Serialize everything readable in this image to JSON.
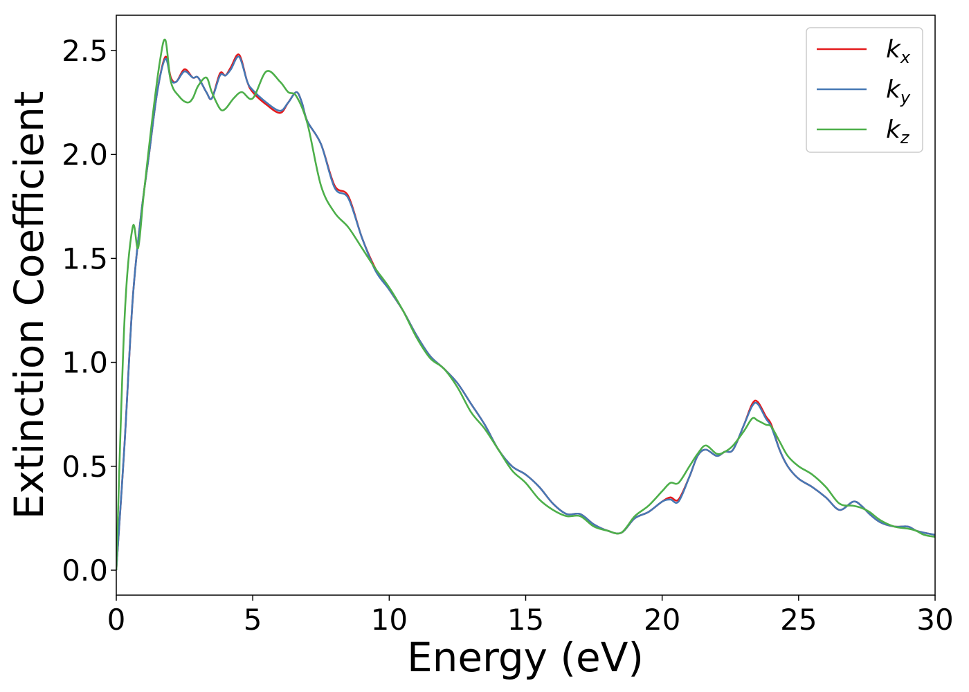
{
  "chart_data": {
    "type": "line",
    "title": "",
    "xlabel": "Energy (eV)",
    "ylabel": "Extinction Coefficient",
    "xlim": [
      0,
      30
    ],
    "ylim": [
      -0.12,
      2.67
    ],
    "xticks": [
      0,
      5,
      10,
      15,
      20,
      25,
      30
    ],
    "xtick_labels": [
      "0",
      "5",
      "10",
      "15",
      "20",
      "25",
      "30"
    ],
    "yticks": [
      0.0,
      0.5,
      1.0,
      1.5,
      2.0,
      2.5
    ],
    "ytick_labels": [
      "0.0",
      "0.5",
      "1.0",
      "1.5",
      "2.0",
      "2.5"
    ],
    "grid": false,
    "legend_position": "top-right",
    "series": [
      {
        "name": "kx",
        "label_main": "k",
        "label_sub": "x",
        "color": "#e41a1c",
        "x": [
          0,
          0.3,
          0.6,
          0.9,
          1.2,
          1.5,
          1.8,
          2.0,
          2.2,
          2.5,
          2.8,
          3.0,
          3.3,
          3.5,
          3.8,
          4.0,
          4.2,
          4.5,
          4.8,
          5.0,
          5.5,
          6.0,
          6.3,
          6.6,
          6.8,
          7.0,
          7.5,
          8.0,
          8.5,
          9.0,
          9.5,
          10.0,
          10.5,
          11.0,
          11.5,
          12.0,
          12.5,
          13.0,
          13.5,
          14.0,
          14.5,
          15.0,
          15.5,
          16.0,
          16.5,
          17.0,
          17.5,
          18.0,
          18.5,
          19.0,
          19.5,
          20.0,
          20.3,
          20.6,
          21.0,
          21.3,
          21.6,
          22.0,
          22.3,
          22.6,
          23.0,
          23.3,
          23.5,
          23.8,
          24.0,
          24.3,
          24.6,
          25.0,
          25.5,
          26.0,
          26.5,
          27.0,
          27.3,
          27.6,
          28.0,
          28.5,
          29.0,
          29.3,
          29.6,
          30.0
        ],
        "y": [
          0.0,
          0.6,
          1.3,
          1.7,
          2.0,
          2.3,
          2.47,
          2.37,
          2.35,
          2.41,
          2.37,
          2.37,
          2.3,
          2.27,
          2.39,
          2.38,
          2.42,
          2.48,
          2.35,
          2.3,
          2.24,
          2.2,
          2.25,
          2.3,
          2.25,
          2.16,
          2.05,
          1.85,
          1.8,
          1.6,
          1.45,
          1.35,
          1.25,
          1.13,
          1.03,
          0.97,
          0.9,
          0.8,
          0.7,
          0.58,
          0.5,
          0.46,
          0.4,
          0.32,
          0.27,
          0.27,
          0.22,
          0.19,
          0.18,
          0.25,
          0.28,
          0.33,
          0.35,
          0.34,
          0.45,
          0.55,
          0.58,
          0.55,
          0.57,
          0.58,
          0.7,
          0.8,
          0.81,
          0.74,
          0.7,
          0.58,
          0.5,
          0.44,
          0.4,
          0.35,
          0.29,
          0.33,
          0.31,
          0.27,
          0.23,
          0.21,
          0.21,
          0.19,
          0.18,
          0.17
        ]
      },
      {
        "name": "ky",
        "label_main": "k",
        "label_sub": "y",
        "color": "#4678b4",
        "x": [
          0,
          0.3,
          0.6,
          0.9,
          1.2,
          1.5,
          1.8,
          2.0,
          2.2,
          2.5,
          2.8,
          3.0,
          3.3,
          3.5,
          3.8,
          4.0,
          4.2,
          4.5,
          4.8,
          5.0,
          5.5,
          6.0,
          6.3,
          6.6,
          6.8,
          7.0,
          7.5,
          8.0,
          8.5,
          9.0,
          9.5,
          10.0,
          10.5,
          11.0,
          11.5,
          12.0,
          12.5,
          13.0,
          13.5,
          14.0,
          14.5,
          15.0,
          15.5,
          16.0,
          16.5,
          17.0,
          17.5,
          18.0,
          18.5,
          19.0,
          19.5,
          20.0,
          20.3,
          20.6,
          21.0,
          21.3,
          21.6,
          22.0,
          22.3,
          22.6,
          23.0,
          23.3,
          23.5,
          23.8,
          24.0,
          24.3,
          24.6,
          25.0,
          25.5,
          26.0,
          26.5,
          27.0,
          27.3,
          27.6,
          28.0,
          28.5,
          29.0,
          29.3,
          29.6,
          30.0
        ],
        "y": [
          0.0,
          0.6,
          1.3,
          1.7,
          2.0,
          2.3,
          2.46,
          2.36,
          2.35,
          2.4,
          2.37,
          2.37,
          2.3,
          2.27,
          2.38,
          2.38,
          2.41,
          2.47,
          2.35,
          2.31,
          2.25,
          2.21,
          2.25,
          2.3,
          2.25,
          2.16,
          2.05,
          1.84,
          1.79,
          1.6,
          1.44,
          1.35,
          1.25,
          1.13,
          1.03,
          0.97,
          0.9,
          0.8,
          0.7,
          0.58,
          0.5,
          0.46,
          0.4,
          0.32,
          0.27,
          0.27,
          0.22,
          0.19,
          0.18,
          0.25,
          0.28,
          0.33,
          0.34,
          0.33,
          0.45,
          0.55,
          0.58,
          0.55,
          0.57,
          0.58,
          0.7,
          0.79,
          0.8,
          0.73,
          0.69,
          0.58,
          0.5,
          0.44,
          0.4,
          0.35,
          0.29,
          0.33,
          0.31,
          0.27,
          0.23,
          0.21,
          0.21,
          0.19,
          0.18,
          0.17
        ]
      },
      {
        "name": "kz",
        "label_main": "k",
        "label_sub": "z",
        "color": "#4daf4a",
        "x": [
          0,
          0.3,
          0.6,
          0.8,
          1.0,
          1.3,
          1.6,
          1.8,
          2.0,
          2.3,
          2.6,
          2.8,
          3.0,
          3.3,
          3.5,
          3.8,
          4.0,
          4.3,
          4.6,
          5.0,
          5.5,
          6.0,
          6.3,
          6.6,
          7.0,
          7.5,
          8.0,
          8.5,
          9.0,
          9.5,
          10.0,
          10.5,
          11.0,
          11.5,
          12.0,
          12.5,
          13.0,
          13.5,
          14.0,
          14.5,
          15.0,
          15.5,
          16.0,
          16.5,
          17.0,
          17.5,
          18.0,
          18.5,
          19.0,
          19.5,
          20.0,
          20.3,
          20.6,
          21.0,
          21.3,
          21.6,
          22.0,
          22.3,
          22.6,
          23.0,
          23.3,
          23.5,
          23.8,
          24.0,
          24.3,
          24.6,
          25.0,
          25.5,
          26.0,
          26.5,
          27.0,
          27.3,
          27.6,
          28.0,
          28.5,
          29.0,
          29.3,
          29.6,
          30.0
        ],
        "y": [
          0.0,
          1.2,
          1.65,
          1.55,
          1.8,
          2.15,
          2.45,
          2.55,
          2.35,
          2.28,
          2.25,
          2.27,
          2.33,
          2.37,
          2.3,
          2.22,
          2.22,
          2.27,
          2.3,
          2.27,
          2.4,
          2.35,
          2.3,
          2.28,
          2.15,
          1.85,
          1.72,
          1.65,
          1.55,
          1.45,
          1.36,
          1.25,
          1.12,
          1.02,
          0.97,
          0.88,
          0.76,
          0.68,
          0.58,
          0.48,
          0.42,
          0.34,
          0.29,
          0.26,
          0.26,
          0.21,
          0.19,
          0.18,
          0.26,
          0.31,
          0.38,
          0.42,
          0.42,
          0.5,
          0.56,
          0.6,
          0.56,
          0.57,
          0.6,
          0.67,
          0.73,
          0.72,
          0.7,
          0.69,
          0.62,
          0.55,
          0.5,
          0.46,
          0.4,
          0.32,
          0.31,
          0.3,
          0.28,
          0.24,
          0.21,
          0.2,
          0.19,
          0.17,
          0.16
        ]
      }
    ]
  }
}
